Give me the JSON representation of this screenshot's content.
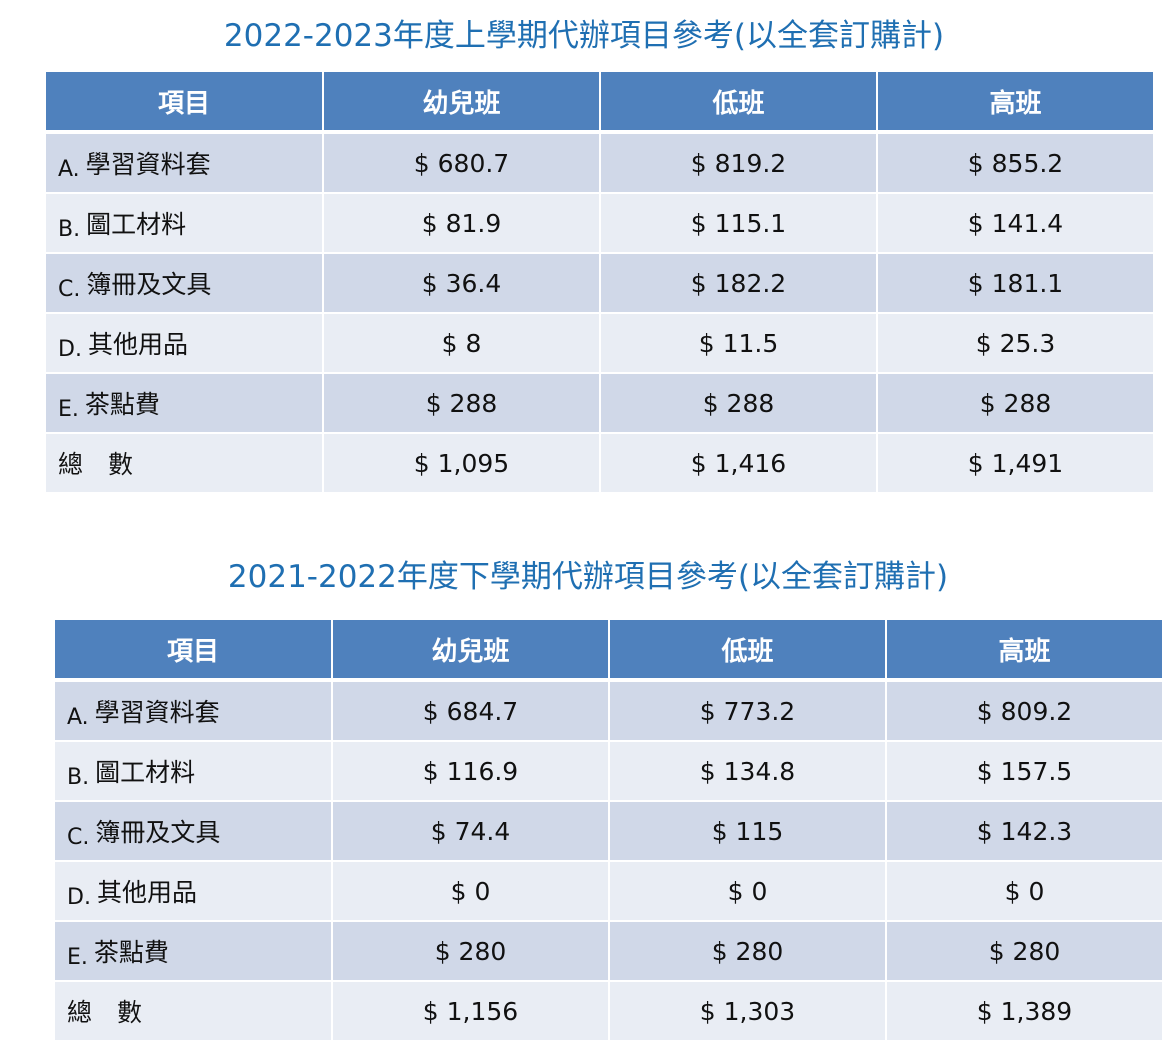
{
  "tables": [
    {
      "title": "2022-2023年度上學期代辦項目參考(以全套訂購計)",
      "headers": [
        "項目",
        "幼兒班",
        "低班",
        "高班"
      ],
      "rows": [
        {
          "letter": "A.",
          "item": "學習資料套",
          "values": [
            "$ 680.7",
            "$ 819.2",
            "$ 855.2"
          ]
        },
        {
          "letter": "B.",
          "item": "圖工材料",
          "values": [
            "$ 81.9",
            "$ 115.1",
            "$ 141.4"
          ]
        },
        {
          "letter": "C.",
          "item": "簿冊及文具",
          "values": [
            "$ 36.4",
            "$ 182.2",
            "$ 181.1"
          ]
        },
        {
          "letter": "D.",
          "item": "其他用品",
          "values": [
            "$ 8",
            "$ 11.5",
            "$ 25.3"
          ]
        },
        {
          "letter": "E.",
          "item": "茶點費",
          "values": [
            "$ 288",
            "$ 288",
            "$ 288"
          ]
        },
        {
          "letter": "",
          "item": "總　數",
          "values": [
            "$ 1,095",
            "$ 1,416",
            "$ 1,491"
          ]
        }
      ]
    },
    {
      "title": "2021-2022年度下學期代辦項目參考(以全套訂購計)",
      "headers": [
        "項目",
        "幼兒班",
        "低班",
        "高班"
      ],
      "rows": [
        {
          "letter": "A.",
          "item": "學習資料套",
          "values": [
            "$ 684.7",
            "$ 773.2",
            "$ 809.2"
          ]
        },
        {
          "letter": "B.",
          "item": "圖工材料",
          "values": [
            "$ 116.9",
            "$ 134.8",
            "$ 157.5"
          ]
        },
        {
          "letter": "C.",
          "item": "簿冊及文具",
          "values": [
            "$ 74.4",
            "$ 115",
            "$ 142.3"
          ]
        },
        {
          "letter": "D.",
          "item": "其他用品",
          "values": [
            "$ 0",
            "$ 0",
            "$ 0"
          ]
        },
        {
          "letter": "E.",
          "item": "茶點費",
          "values": [
            "$ 280",
            "$ 280",
            "$ 280"
          ]
        },
        {
          "letter": "",
          "item": "總　數",
          "values": [
            "$ 1,156",
            "$ 1,303",
            "$ 1,389"
          ]
        }
      ]
    }
  ],
  "colors": {
    "title": "#1f6fb2",
    "header_bg": "#4f81bd",
    "row_dark": "#d0d8e8",
    "row_light": "#e9edf4"
  }
}
